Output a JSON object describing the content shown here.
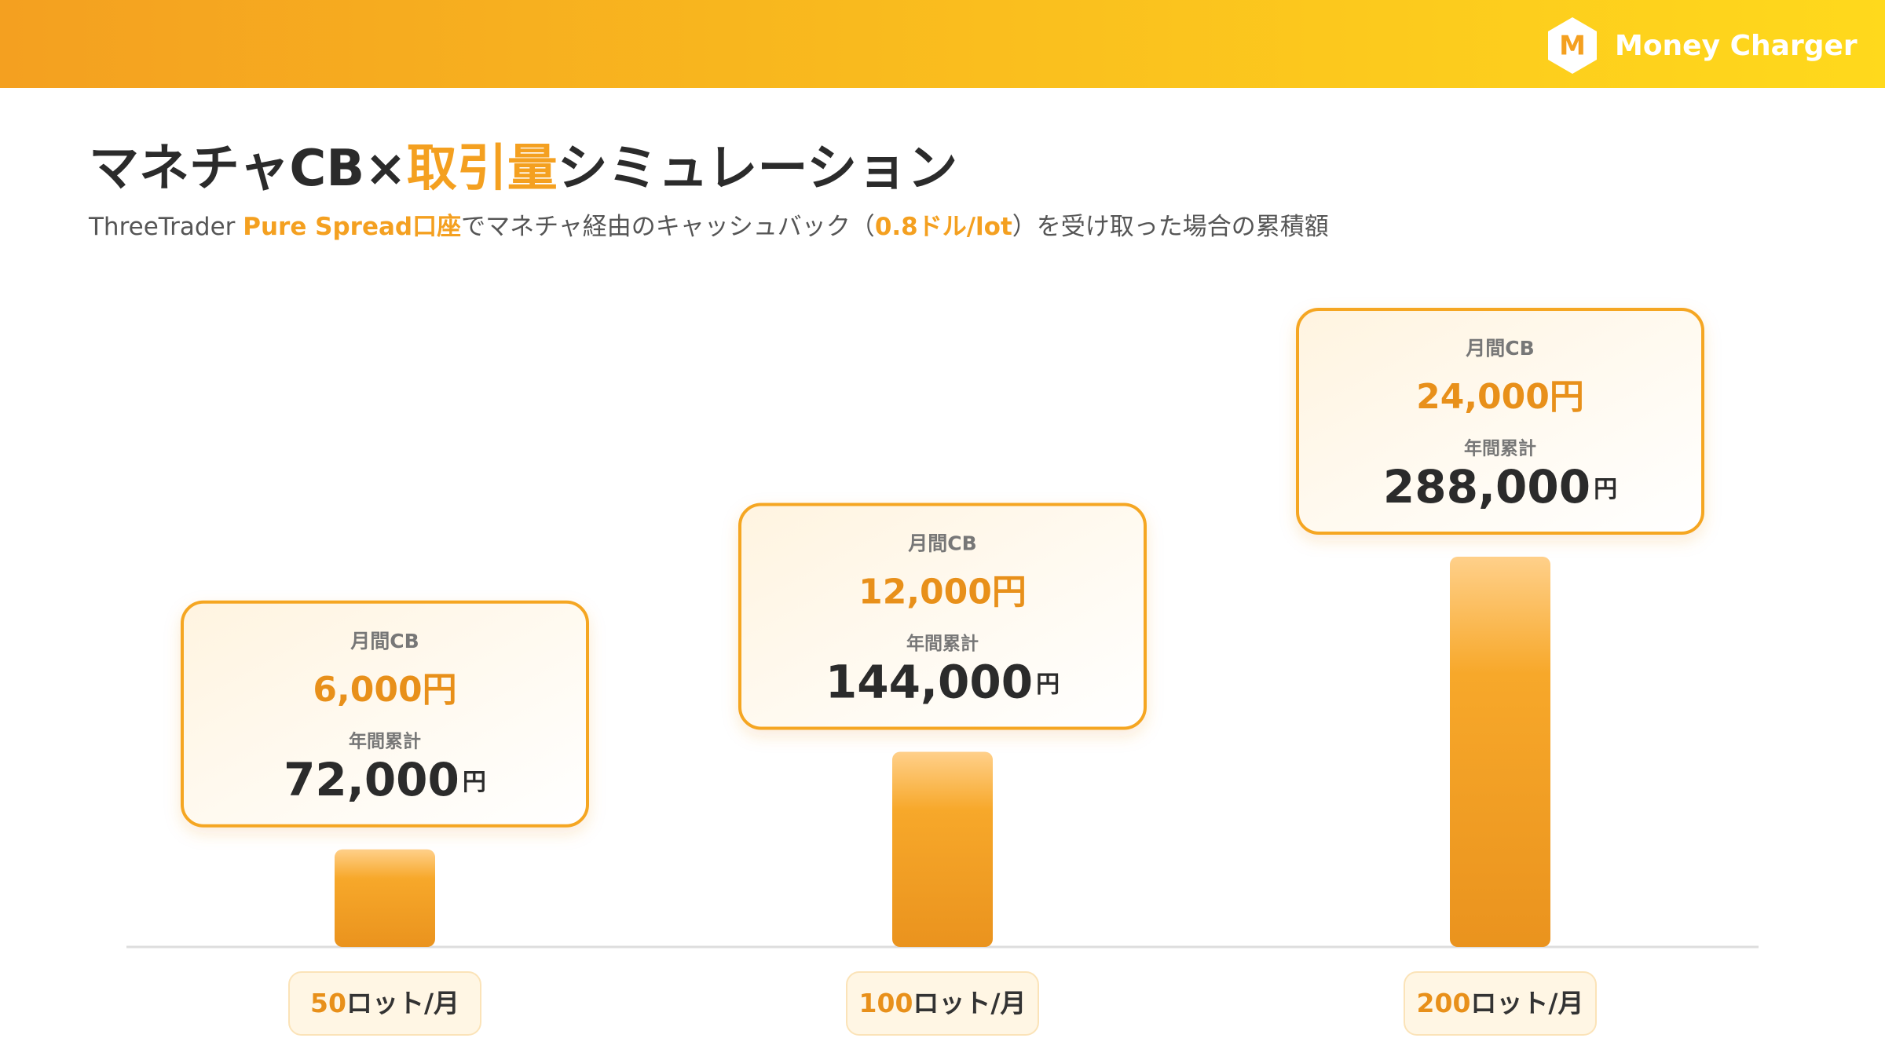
{
  "brand": {
    "logo": "M",
    "name": "Money Charger"
  },
  "chart_data": {
    "type": "bar",
    "title_parts": [
      "マネチャCB×",
      "取引量",
      "シミュレーション"
    ],
    "subtitle_parts": [
      "ThreeTrader ",
      "Pure Spread口座",
      "でマネチャ経由のキャッシュバック（",
      "0.8ドル/lot",
      "）を受け取った場合の累積額"
    ],
    "lots": [
      50,
      100,
      200
    ],
    "lot_unit": "ロット/月",
    "monthly_label": "月間CB",
    "values": [
      6000,
      12000,
      24000
    ],
    "value_labels": [
      "6,000円",
      "12,000円",
      "24,000円"
    ],
    "annual_label": "年間累計",
    "annual_values": [
      72000,
      144000,
      288000
    ],
    "annual_value_labels": [
      "72,000",
      "144,000",
      "288,000"
    ],
    "yen": "円",
    "color": "#F5A623"
  }
}
